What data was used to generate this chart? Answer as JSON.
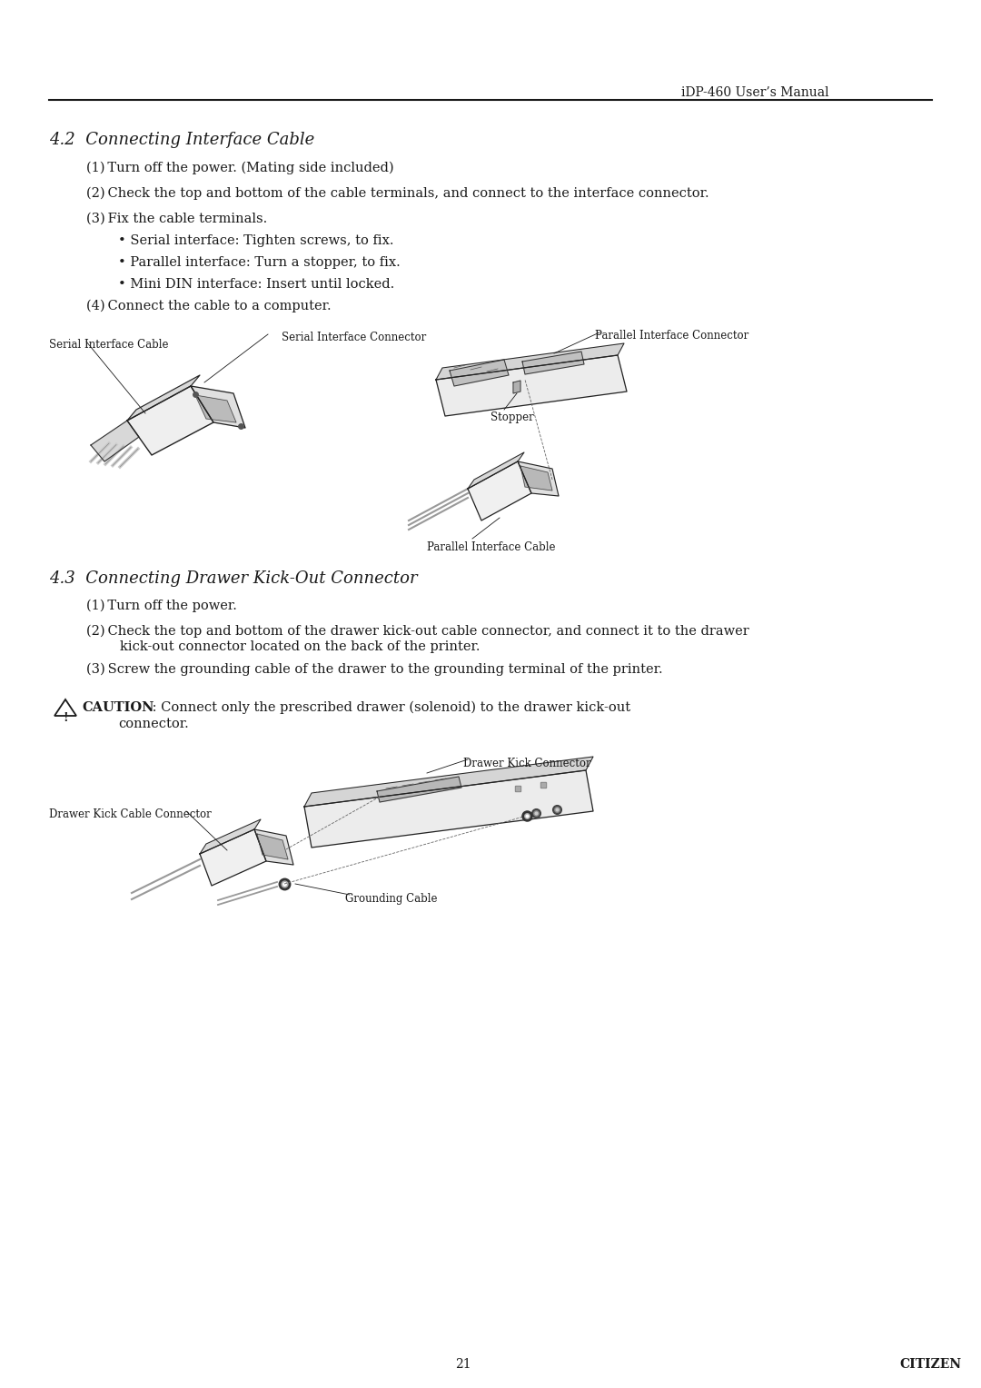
{
  "bg_color": "#ffffff",
  "header_text": "iDP-460 User’s Manual",
  "header_fontsize": 10,
  "section1_title": "4.2  Connecting Interface Cable",
  "section1_title_fontsize": 13,
  "section1_items": [
    "(1) Turn off the power. (Mating side included)",
    "(2) Check the top and bottom of the cable terminals, and connect to the interface connector.",
    "(3) Fix the cable terminals."
  ],
  "section1_bullets": [
    "• Serial interface: Tighten screws, to fix.",
    "• Parallel interface: Turn a stopper, to fix.",
    "• Mini DIN interface: Insert until locked."
  ],
  "section1_item4": "(4) Connect the cable to a computer.",
  "section2_title": "4.3  Connecting Drawer Kick-Out Connector",
  "section2_title_fontsize": 13,
  "section2_items": [
    "(1) Turn off the power.",
    "(2) Check the top and bottom of the drawer kick-out cable connector, and connect it to the drawer\n        kick-out connector located on the back of the printer.",
    "(3) Screw the grounding cable of the drawer to the grounding terminal of the printer."
  ],
  "caution_bold": "CAUTION",
  "caution_normal": " : Connect only the prescribed drawer (solenoid) to the drawer kick-out",
  "caution_normal2": "connector.",
  "footer_page": "21",
  "footer_brand": "CITIZEN",
  "body_fontsize": 10.5,
  "label_fontsize": 8.5
}
